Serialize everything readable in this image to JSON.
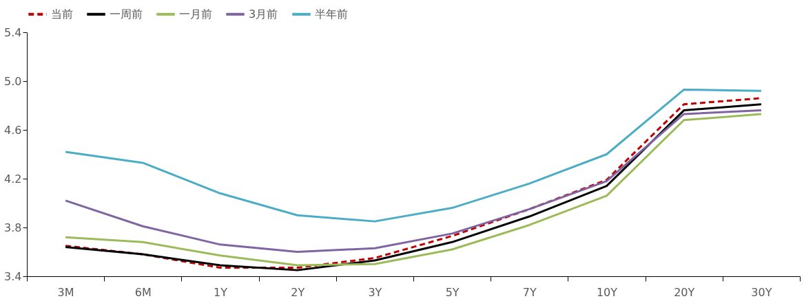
{
  "chart_data": {
    "type": "line",
    "categories": [
      "3M",
      "6M",
      "1Y",
      "2Y",
      "3Y",
      "5Y",
      "7Y",
      "10Y",
      "20Y",
      "30Y"
    ],
    "series": [
      {
        "name": "当前",
        "color": "#c00000",
        "line_style": "dashed",
        "values": [
          3.65,
          3.58,
          3.47,
          3.47,
          3.55,
          3.73,
          3.95,
          4.19,
          4.81,
          4.86
        ]
      },
      {
        "name": "一周前",
        "color": "#000000",
        "values": [
          3.64,
          3.58,
          3.49,
          3.45,
          3.53,
          3.68,
          3.89,
          4.14,
          4.76,
          4.81
        ]
      },
      {
        "name": "一月前",
        "color": "#9bbb59",
        "values": [
          3.72,
          3.68,
          3.57,
          3.49,
          3.5,
          3.62,
          3.82,
          4.06,
          4.68,
          4.73
        ]
      },
      {
        "name": "3月前",
        "color": "#8064a2",
        "values": [
          4.02,
          3.81,
          3.66,
          3.6,
          3.63,
          3.75,
          3.95,
          4.18,
          4.73,
          4.76
        ]
      },
      {
        "name": "半年前",
        "color": "#4bacc6",
        "values": [
          4.42,
          4.33,
          4.08,
          3.9,
          3.85,
          3.96,
          4.16,
          4.4,
          4.93,
          4.92
        ]
      }
    ],
    "ylim": [
      3.4,
      5.4
    ],
    "yticks": [
      3.4,
      3.8,
      4.2,
      4.6,
      {
        "value": 5.0,
        "label": "5.0"
      },
      5.4
    ],
    "grid": false,
    "legend": "top",
    "marker": "none",
    "line_style": "solid"
  }
}
